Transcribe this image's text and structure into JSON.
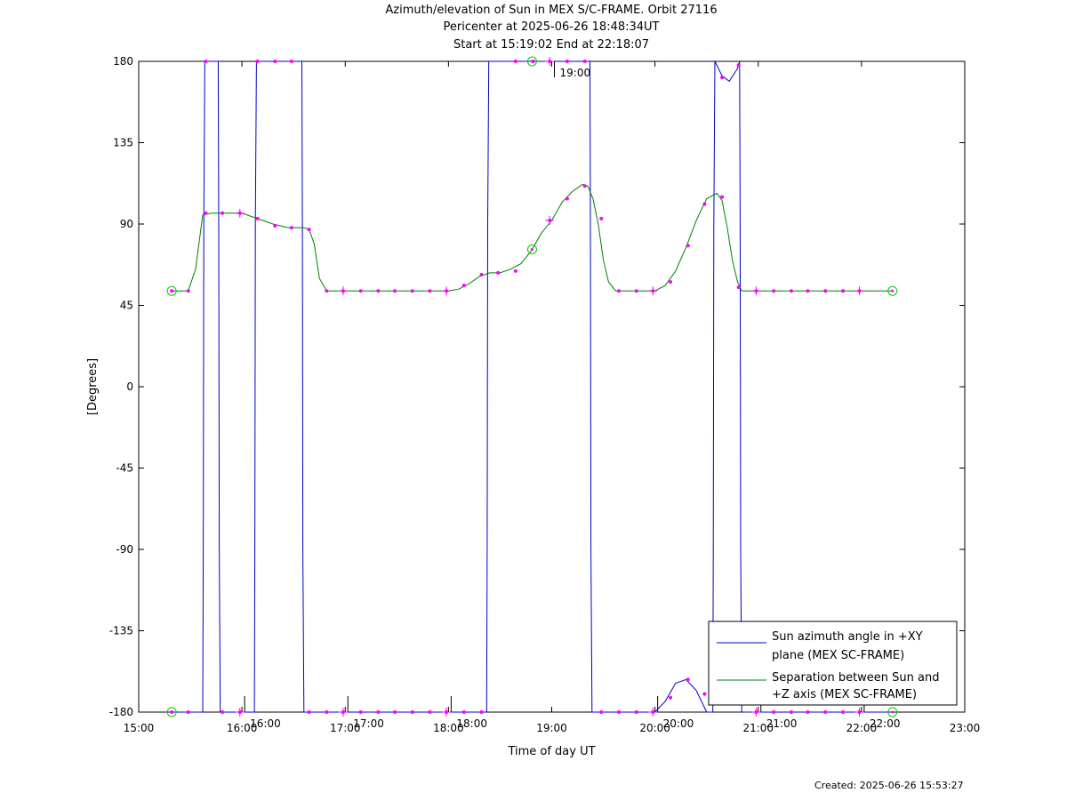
{
  "chart_data": {
    "type": "line",
    "title": "Azimuth/elevation of Sun in MEX S/C-FRAME.  Orbit 27116",
    "subtitle_1": "Pericenter at 2025-06-26 18:48:34UT",
    "subtitle_2": "Start at 15:19:02 End at 22:18:07",
    "xlabel": "Time of day UT",
    "ylabel": "[Degrees]",
    "x_unit": "hours",
    "xlim": [
      15.0,
      23.0
    ],
    "ylim": [
      -180,
      180
    ],
    "xticks": [
      15,
      16,
      17,
      18,
      19,
      20,
      21,
      22,
      23
    ],
    "xtick_labels": [
      "15:00",
      "16:00",
      "17:00",
      "18:00",
      "19:00",
      "20:00",
      "21:00",
      "22:00",
      "23:00"
    ],
    "yticks": [
      180,
      135,
      90,
      45,
      0,
      -45,
      -90,
      -135,
      -180
    ],
    "ytick_labels": [
      "180",
      "135",
      "90",
      "45",
      "0",
      "-45",
      "-90",
      "-135",
      "-180"
    ],
    "hour_markers": [
      {
        "x": 16.0,
        "label": "16:00"
      },
      {
        "x": 17.0,
        "label": "17:00"
      },
      {
        "x": 18.0,
        "label": "18:00"
      },
      {
        "x": 19.0,
        "label": "19:00"
      },
      {
        "x": 20.0,
        "label": "20:00"
      },
      {
        "x": 21.0,
        "label": "21:00"
      },
      {
        "x": 22.0,
        "label": "22:00"
      }
    ],
    "series": [
      {
        "name": "Sun azimuth angle in +XY plane (MEX SC-FRAME)",
        "legend_line_1": "Sun azimuth angle in +XY",
        "legend_line_2": "plane (MEX SC-FRAME)",
        "color": "#0000c8",
        "x": [
          15.32,
          15.48,
          15.62,
          15.625,
          15.63,
          15.64,
          15.77,
          15.775,
          15.78,
          15.79,
          16.0,
          16.12,
          16.125,
          16.13,
          16.14,
          16.3,
          16.45,
          16.58,
          16.585,
          16.59,
          16.6,
          16.8,
          17.0,
          17.2,
          17.4,
          17.6,
          17.8,
          18.0,
          18.2,
          18.37,
          18.375,
          18.38,
          18.39,
          18.7,
          19.0,
          19.2,
          19.37,
          19.375,
          19.38,
          19.39,
          19.6,
          19.8,
          20.0,
          20.1,
          20.2,
          20.3,
          20.4,
          20.5,
          20.56,
          20.565,
          20.57,
          20.58,
          20.65,
          20.72,
          20.8,
          20.82,
          20.825,
          20.83,
          20.84,
          21.0,
          21.2,
          21.4,
          21.6,
          21.8,
          22.0,
          22.18,
          22.3
        ],
        "y": [
          -180,
          -180,
          -180,
          -90,
          90,
          180,
          180,
          90,
          -90,
          -180,
          -180,
          -180,
          -90,
          90,
          180,
          180,
          180,
          180,
          90,
          -90,
          -180,
          -180,
          -180,
          -180,
          -180,
          -180,
          -180,
          -180,
          -180,
          -180,
          -90,
          90,
          180,
          180,
          180,
          180,
          180,
          90,
          -90,
          -180,
          -180,
          -180,
          -180,
          -174,
          -164,
          -162,
          -168,
          -180,
          -180,
          -90,
          90,
          180,
          172,
          169,
          176,
          180,
          90,
          -90,
          -180,
          -180,
          -180,
          -180,
          -180,
          -180,
          -180,
          -180,
          -180
        ]
      },
      {
        "name": "Separation between Sun and +Z axis (MEX SC-FRAME)",
        "legend_line_1": "Separation between Sun and",
        "legend_line_2": "+Z axis (MEX SC-FRAME)",
        "color": "#008000",
        "x": [
          15.32,
          15.48,
          15.55,
          15.62,
          15.7,
          15.8,
          16.0,
          16.15,
          16.3,
          16.45,
          16.6,
          16.65,
          16.7,
          16.75,
          16.82,
          16.9,
          17.0,
          17.2,
          17.4,
          17.6,
          17.8,
          18.0,
          18.1,
          18.2,
          18.3,
          18.4,
          18.5,
          18.6,
          18.7,
          18.8,
          18.9,
          19.0,
          19.1,
          19.2,
          19.3,
          19.35,
          19.4,
          19.45,
          19.5,
          19.55,
          19.62,
          19.7,
          19.8,
          20.0,
          20.1,
          20.2,
          20.3,
          20.4,
          20.5,
          20.6,
          20.65,
          20.7,
          20.75,
          20.8,
          20.84,
          20.9,
          21.0,
          21.2,
          21.4,
          21.6,
          21.8,
          22.0,
          22.2,
          22.3
        ],
        "y": [
          53,
          53,
          65,
          95,
          96,
          96,
          96,
          93,
          90,
          88,
          88,
          87,
          79,
          60,
          53,
          53,
          53,
          53,
          53,
          53,
          53,
          53,
          54,
          57,
          61,
          63,
          63,
          65,
          68,
          75,
          85,
          92,
          102,
          108,
          112,
          111,
          104,
          90,
          70,
          58,
          53,
          53,
          53,
          53,
          56,
          64,
          77,
          92,
          104,
          107,
          103,
          88,
          70,
          58,
          53,
          53,
          53,
          53,
          53,
          53,
          53,
          53,
          53,
          53
        ]
      }
    ],
    "markers": {
      "color": "#ff00ff",
      "azimuth_points": [
        [
          15.32,
          -180
        ],
        [
          15.48,
          -180
        ],
        [
          15.65,
          180
        ],
        [
          15.81,
          -180
        ],
        [
          15.98,
          -180
        ],
        [
          16.15,
          180
        ],
        [
          16.32,
          180
        ],
        [
          16.48,
          180
        ],
        [
          16.65,
          -180
        ],
        [
          16.82,
          -180
        ],
        [
          16.98,
          -180
        ],
        [
          17.15,
          -180
        ],
        [
          17.32,
          -180
        ],
        [
          17.48,
          -180
        ],
        [
          17.65,
          -180
        ],
        [
          17.82,
          -180
        ],
        [
          17.98,
          -180
        ],
        [
          18.15,
          -180
        ],
        [
          18.32,
          -180
        ],
        [
          18.65,
          180
        ],
        [
          18.82,
          180
        ],
        [
          18.98,
          180
        ],
        [
          19.15,
          180
        ],
        [
          19.32,
          180
        ],
        [
          19.48,
          -180
        ],
        [
          19.65,
          -180
        ],
        [
          19.82,
          -180
        ],
        [
          19.98,
          -180
        ],
        [
          20.15,
          -172
        ],
        [
          20.32,
          -162
        ],
        [
          20.48,
          -170
        ],
        [
          20.65,
          171
        ],
        [
          20.81,
          178
        ],
        [
          20.98,
          -180
        ],
        [
          21.15,
          -180
        ],
        [
          21.32,
          -180
        ],
        [
          21.48,
          -180
        ],
        [
          21.65,
          -180
        ],
        [
          21.82,
          -180
        ],
        [
          21.98,
          -180
        ]
      ],
      "separation_points": [
        [
          15.32,
          53
        ],
        [
          15.48,
          53
        ],
        [
          15.65,
          96
        ],
        [
          15.81,
          96
        ],
        [
          15.98,
          96
        ],
        [
          16.15,
          93
        ],
        [
          16.32,
          89
        ],
        [
          16.48,
          88
        ],
        [
          16.65,
          87
        ],
        [
          16.82,
          53
        ],
        [
          16.98,
          53
        ],
        [
          17.15,
          53
        ],
        [
          17.32,
          53
        ],
        [
          17.48,
          53
        ],
        [
          17.65,
          53
        ],
        [
          17.82,
          53
        ],
        [
          17.98,
          53
        ],
        [
          18.15,
          56
        ],
        [
          18.32,
          62
        ],
        [
          18.48,
          63
        ],
        [
          18.65,
          64
        ],
        [
          18.98,
          92
        ],
        [
          19.15,
          104
        ],
        [
          19.32,
          111
        ],
        [
          19.48,
          93
        ],
        [
          19.65,
          53
        ],
        [
          19.82,
          53
        ],
        [
          19.98,
          53
        ],
        [
          20.15,
          58
        ],
        [
          20.32,
          78
        ],
        [
          20.48,
          101
        ],
        [
          20.65,
          105
        ],
        [
          20.81,
          55
        ],
        [
          20.98,
          53
        ],
        [
          21.15,
          53
        ],
        [
          21.32,
          53
        ],
        [
          21.48,
          53
        ],
        [
          21.65,
          53
        ],
        [
          21.82,
          53
        ],
        [
          21.98,
          53
        ]
      ],
      "plus_points": [
        [
          15.98,
          -180
        ],
        [
          16.98,
          -180
        ],
        [
          17.98,
          -180
        ],
        [
          18.98,
          180
        ],
        [
          19.98,
          -180
        ],
        [
          20.98,
          -180
        ],
        [
          21.98,
          -180
        ],
        [
          15.98,
          96
        ],
        [
          16.98,
          53
        ],
        [
          17.98,
          53
        ],
        [
          18.98,
          92
        ],
        [
          19.98,
          53
        ],
        [
          20.98,
          53
        ],
        [
          21.98,
          53
        ]
      ],
      "circle_color": "#00cc00",
      "circle_points": [
        [
          15.32,
          53
        ],
        [
          22.3,
          53
        ],
        [
          15.32,
          -180
        ],
        [
          22.3,
          -180
        ],
        [
          18.81,
          76
        ],
        [
          18.81,
          180
        ]
      ]
    },
    "legend_position": "bottom-right",
    "grid": false
  },
  "footer": {
    "created": "Created: 2025-06-26 15:53:27"
  }
}
